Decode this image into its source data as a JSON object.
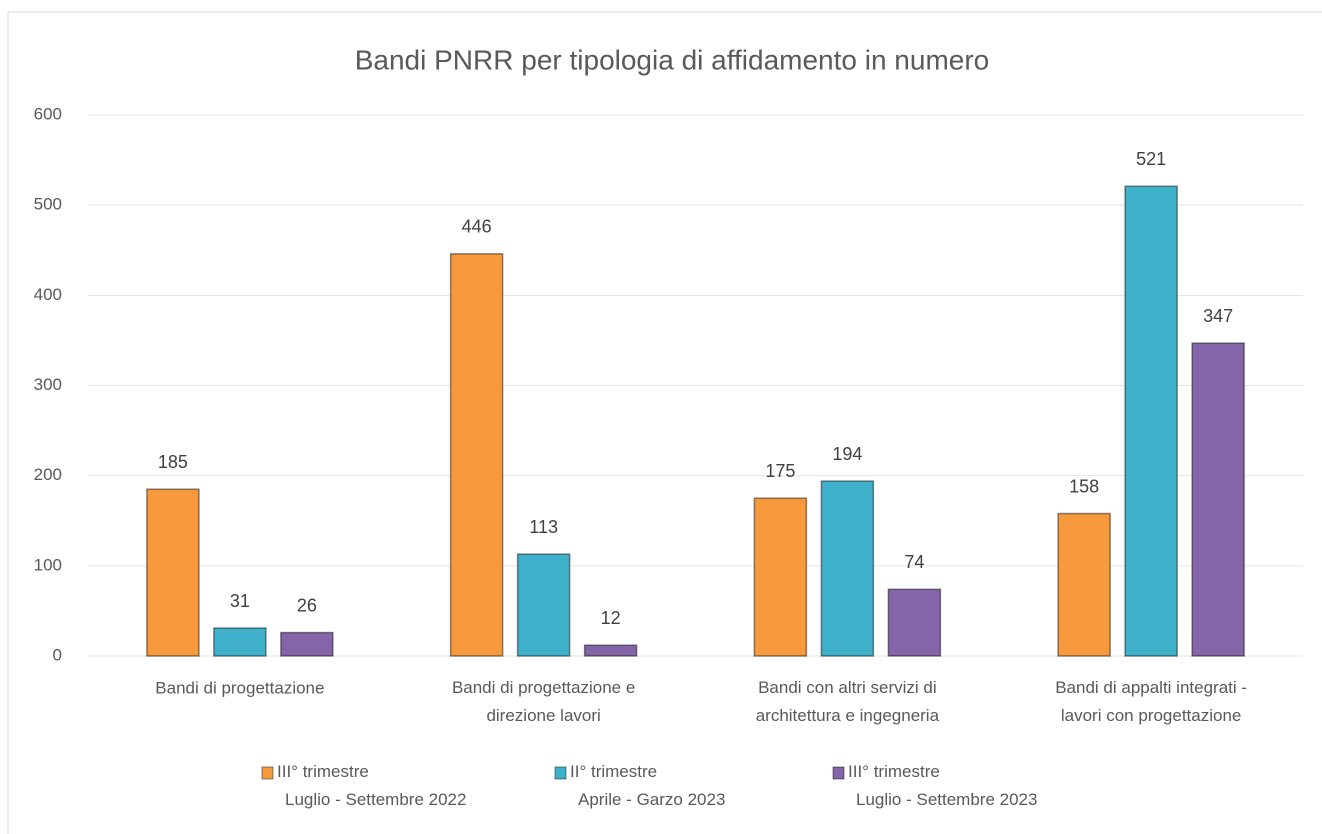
{
  "chart_data": {
    "type": "bar",
    "title": "Bandi PNRR per tipologia di affidamento in numero",
    "categories": [
      "Bandi di progettazione",
      "Bandi di progettazione e\ndirezione lavori",
      "Bandi con altri servizi di\narchitettura e ingegneria",
      "Bandi di appalti integrati -\nlavori con progettazione"
    ],
    "series": [
      {
        "name": "III° trimestre\nLuglio - Settembre 2022",
        "color": "#f79a3e",
        "values": [
          185,
          446,
          175,
          158
        ]
      },
      {
        "name": "II° trimestre\nAprile  - Garzo 2023",
        "color": "#3fb1ca",
        "values": [
          31,
          113,
          194,
          521
        ]
      },
      {
        "name": "III° trimestre\nLuglio - Settembre 2023",
        "color": "#8466a8",
        "values": [
          26,
          12,
          74,
          347
        ]
      }
    ],
    "ylim": [
      0,
      600
    ],
    "yticks": [
      0,
      100,
      200,
      300,
      400,
      500,
      600
    ],
    "grid": true,
    "legend": "bottom"
  }
}
